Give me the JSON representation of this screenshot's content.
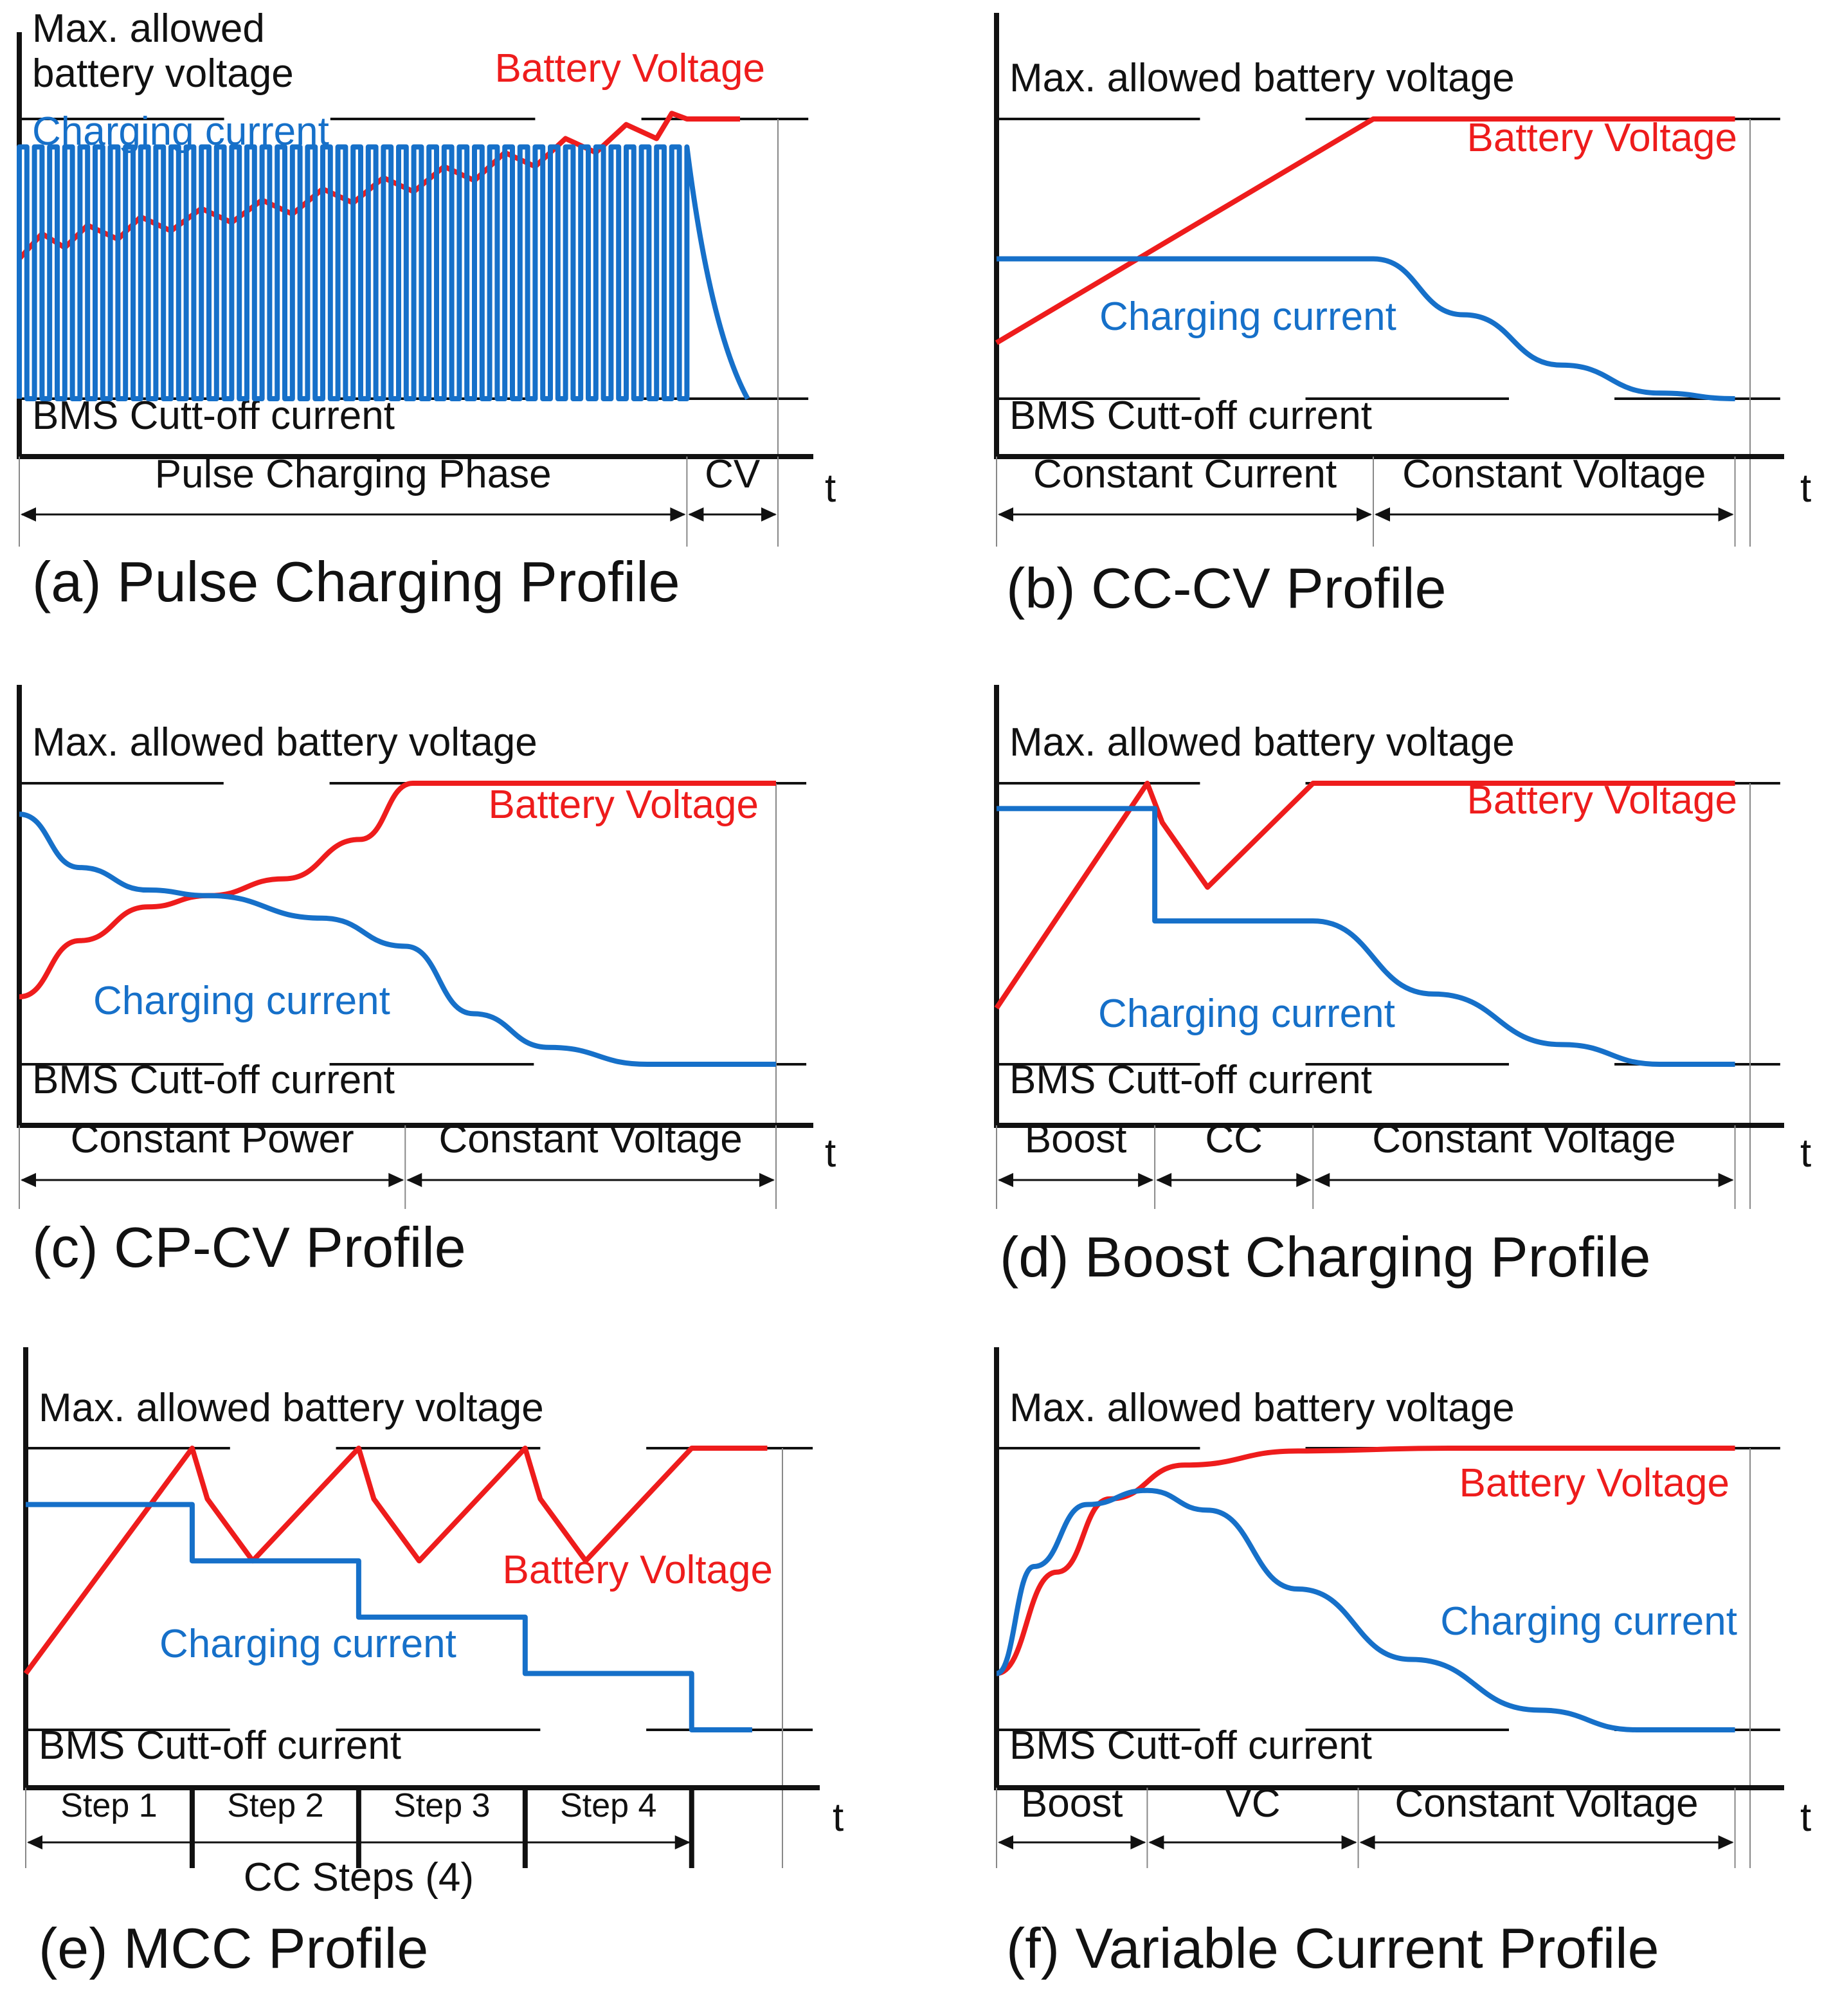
{
  "colors": {
    "voltage": "#ee1c1c",
    "current": "#1670c9",
    "axis": "#111111"
  },
  "chart_data": [
    {
      "type": "line",
      "title": "(a) Pulse Charging Profile",
      "xlabel": "t",
      "labels": {
        "max_voltage": "Max. allowed battery voltage",
        "cutoff": "BMS Cutt-off current",
        "voltage": "Battery Voltage",
        "current": "Charging current"
      },
      "phases": [
        {
          "name": "Pulse Charging Phase",
          "start": 0,
          "end": 0.88
        },
        {
          "name": "CV",
          "start": 0.88,
          "end": 1.0
        }
      ],
      "series": [
        {
          "name": "Battery Voltage",
          "points": [
            [
              0,
              0.5
            ],
            [
              0.03,
              0.59
            ],
            [
              0.06,
              0.54
            ],
            [
              0.09,
              0.62
            ],
            [
              0.13,
              0.57
            ],
            [
              0.16,
              0.65
            ],
            [
              0.2,
              0.6
            ],
            [
              0.24,
              0.68
            ],
            [
              0.28,
              0.63
            ],
            [
              0.32,
              0.71
            ],
            [
              0.36,
              0.66
            ],
            [
              0.4,
              0.75
            ],
            [
              0.44,
              0.7
            ],
            [
              0.48,
              0.79
            ],
            [
              0.52,
              0.74
            ],
            [
              0.56,
              0.83
            ],
            [
              0.6,
              0.78
            ],
            [
              0.64,
              0.88
            ],
            [
              0.68,
              0.83
            ],
            [
              0.72,
              0.93
            ],
            [
              0.76,
              0.88
            ],
            [
              0.8,
              0.98
            ],
            [
              0.84,
              0.93
            ],
            [
              0.86,
              1.02
            ],
            [
              0.88,
              1.0
            ],
            [
              0.95,
              1.0
            ]
          ]
        },
        {
          "name": "Charging current",
          "points": [
            [
              0,
              0.0
            ],
            [
              0,
              0.9
            ],
            [
              0.88,
              0.9
            ],
            [
              0.89,
              0.6
            ],
            [
              0.92,
              0.25
            ],
            [
              0.96,
              0.0
            ]
          ],
          "pulses": 44
        }
      ]
    },
    {
      "type": "line",
      "title": "(b) CC-CV Profile",
      "xlabel": "t",
      "labels": {
        "max_voltage": "Max. allowed battery voltage",
        "cutoff": "BMS Cutt-off current",
        "voltage": "Battery Voltage",
        "current": "Charging current"
      },
      "phases": [
        {
          "name": "Constant Current",
          "start": 0,
          "end": 0.5
        },
        {
          "name": "Constant Voltage",
          "start": 0.5,
          "end": 0.98
        }
      ],
      "series": [
        {
          "name": "Battery Voltage",
          "points": [
            [
              0,
              0.2
            ],
            [
              0.5,
              1.0
            ],
            [
              0.98,
              1.0
            ]
          ]
        },
        {
          "name": "Charging current",
          "points": [
            [
              0,
              0.5
            ],
            [
              0.5,
              0.5
            ],
            [
              0.62,
              0.3
            ],
            [
              0.75,
              0.12
            ],
            [
              0.88,
              0.02
            ],
            [
              0.98,
              0.0
            ]
          ]
        }
      ]
    },
    {
      "type": "line",
      "title": "(c) CP-CV Profile",
      "xlabel": "t",
      "labels": {
        "max_voltage": "Max. allowed battery voltage",
        "cutoff": "BMS Cutt-off current",
        "voltage": "Battery Voltage",
        "current": "Charging current"
      },
      "phases": [
        {
          "name": "Constant Power",
          "start": 0,
          "end": 0.51
        },
        {
          "name": "Constant Voltage",
          "start": 0.51,
          "end": 1.0
        }
      ],
      "series": [
        {
          "name": "Battery Voltage",
          "points": [
            [
              0,
              0.24
            ],
            [
              0.08,
              0.44
            ],
            [
              0.17,
              0.56
            ],
            [
              0.25,
              0.6
            ],
            [
              0.35,
              0.66
            ],
            [
              0.45,
              0.8
            ],
            [
              0.52,
              1.0
            ],
            [
              1.0,
              1.0
            ]
          ]
        },
        {
          "name": "Charging current",
          "points": [
            [
              0,
              0.89
            ],
            [
              0.08,
              0.7
            ],
            [
              0.17,
              0.62
            ],
            [
              0.25,
              0.6
            ],
            [
              0.4,
              0.52
            ],
            [
              0.51,
              0.42
            ],
            [
              0.6,
              0.18
            ],
            [
              0.7,
              0.06
            ],
            [
              0.83,
              0.0
            ],
            [
              1.0,
              0.0
            ]
          ]
        }
      ]
    },
    {
      "type": "line",
      "title": "(d) Boost Charging Profile",
      "xlabel": "t",
      "labels": {
        "max_voltage": "Max. allowed battery voltage",
        "cutoff": "BMS Cutt-off current",
        "voltage": "Battery Voltage",
        "current": "Charging current"
      },
      "phases": [
        {
          "name": "Boost",
          "start": 0,
          "end": 0.21
        },
        {
          "name": "CC",
          "start": 0.21,
          "end": 0.42
        },
        {
          "name": "Constant Voltage",
          "start": 0.42,
          "end": 0.98
        }
      ],
      "series": [
        {
          "name": "Battery Voltage",
          "points": [
            [
              0,
              0.2
            ],
            [
              0.2,
              1.0
            ],
            [
              0.22,
              0.86
            ],
            [
              0.28,
              0.63
            ],
            [
              0.42,
              1.0
            ],
            [
              0.98,
              1.0
            ]
          ]
        },
        {
          "name": "Charging current",
          "points": [
            [
              0,
              0.91
            ],
            [
              0.21,
              0.91
            ],
            [
              0.21,
              0.51
            ],
            [
              0.42,
              0.51
            ],
            [
              0.58,
              0.25
            ],
            [
              0.75,
              0.07
            ],
            [
              0.88,
              0.0
            ],
            [
              0.98,
              0.0
            ]
          ]
        }
      ]
    },
    {
      "type": "line",
      "title": "(e) MCC Profile",
      "xlabel": "t",
      "labels": {
        "max_voltage": "Max. allowed battery voltage",
        "cutoff": "BMS Cutt-off current",
        "voltage": "Battery Voltage",
        "current": "Charging current"
      },
      "phases": [
        {
          "name": "Step 1",
          "start": 0,
          "end": 0.22
        },
        {
          "name": "Step 2",
          "start": 0.22,
          "end": 0.44
        },
        {
          "name": "Step 3",
          "start": 0.44,
          "end": 0.66
        },
        {
          "name": "Step 4",
          "start": 0.66,
          "end": 0.88
        }
      ],
      "group_label": "CC Steps (4)",
      "series": [
        {
          "name": "Battery Voltage",
          "points": [
            [
              0,
              0.2
            ],
            [
              0.22,
              1.0
            ],
            [
              0.24,
              0.82
            ],
            [
              0.3,
              0.6
            ],
            [
              0.44,
              1.0
            ],
            [
              0.46,
              0.82
            ],
            [
              0.52,
              0.6
            ],
            [
              0.66,
              1.0
            ],
            [
              0.68,
              0.82
            ],
            [
              0.74,
              0.6
            ],
            [
              0.88,
              1.0
            ],
            [
              0.98,
              1.0
            ]
          ]
        },
        {
          "name": "Charging current",
          "points": [
            [
              0,
              0.8
            ],
            [
              0.22,
              0.8
            ],
            [
              0.22,
              0.6
            ],
            [
              0.44,
              0.6
            ],
            [
              0.44,
              0.4
            ],
            [
              0.66,
              0.4
            ],
            [
              0.66,
              0.2
            ],
            [
              0.88,
              0.2
            ],
            [
              0.88,
              0.0
            ],
            [
              0.96,
              0.0
            ]
          ]
        }
      ]
    },
    {
      "type": "line",
      "title": "(f) Variable Current Profile",
      "xlabel": "t",
      "labels": {
        "max_voltage": "Max. allowed battery voltage",
        "cutoff": "BMS Cutt-off current",
        "voltage": "Battery Voltage",
        "current": "Charging current"
      },
      "phases": [
        {
          "name": "Boost",
          "start": 0,
          "end": 0.2
        },
        {
          "name": "VC",
          "start": 0.2,
          "end": 0.48
        },
        {
          "name": "Constant Voltage",
          "start": 0.48,
          "end": 0.98
        }
      ],
      "series": [
        {
          "name": "Battery Voltage",
          "points": [
            [
              0,
              0.2
            ],
            [
              0.08,
              0.56
            ],
            [
              0.15,
              0.82
            ],
            [
              0.25,
              0.94
            ],
            [
              0.4,
              0.99
            ],
            [
              0.6,
              1.0
            ],
            [
              0.98,
              1.0
            ]
          ]
        },
        {
          "name": "Charging current",
          "points": [
            [
              0,
              0.2
            ],
            [
              0.05,
              0.58
            ],
            [
              0.12,
              0.8
            ],
            [
              0.2,
              0.85
            ],
            [
              0.28,
              0.78
            ],
            [
              0.4,
              0.5
            ],
            [
              0.55,
              0.25
            ],
            [
              0.72,
              0.07
            ],
            [
              0.85,
              0.0
            ],
            [
              0.98,
              0.0
            ]
          ]
        }
      ]
    }
  ]
}
